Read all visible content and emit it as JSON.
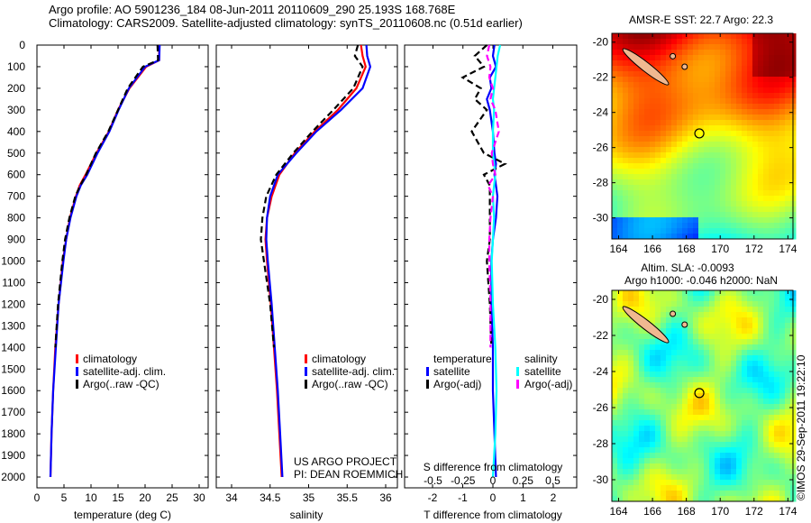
{
  "header": {
    "line1": "Argo profile: AO 5901236_184 08-Jun-2011 20110609_290 25.193S 168.768E",
    "line2": "Climatology: CARS2009. Satellite-adjusted climatology: synTS_20110608.nc (0.51d earlier)"
  },
  "colors": {
    "climatology": "#ff0000",
    "satellite": "#0000ff",
    "argo": "#000000",
    "sal_satellite": "#00ffff",
    "sal_argo": "#ff00ff"
  },
  "chart_data": [
    {
      "type": "line",
      "id": "temperature",
      "xlabel": "temperature (deg C)",
      "ylabel": "",
      "xlim": [
        -1.2,
        31.7
      ],
      "ylim": [
        2050,
        0
      ],
      "xticks": [
        0,
        5,
        10,
        15,
        20,
        25,
        30
      ],
      "yticks": [
        0,
        100,
        200,
        300,
        400,
        500,
        600,
        700,
        800,
        900,
        1000,
        1100,
        1200,
        1300,
        1400,
        1500,
        1600,
        1700,
        1800,
        1900,
        2000
      ],
      "legend": [
        "climatology",
        "satellite-adj. clim.",
        "Argo(..raw -QC)"
      ],
      "depth": [
        0,
        70,
        100,
        200,
        300,
        400,
        500,
        600,
        650,
        700,
        800,
        900,
        1000,
        1200,
        1400,
        1600,
        1800,
        2000
      ],
      "series": [
        {
          "name": "climatology",
          "values": [
            22.6,
            22.6,
            20.2,
            17.1,
            15.0,
            13.3,
            11.0,
            9.0,
            7.9,
            7.2,
            6.1,
            5.4,
            4.8,
            4.0,
            3.4,
            3.0,
            2.7,
            2.5
          ]
        },
        {
          "name": "satellite-adj. clim.",
          "values": [
            22.7,
            22.6,
            20.0,
            17.0,
            15.1,
            13.4,
            11.2,
            9.3,
            8.1,
            7.3,
            6.2,
            5.4,
            4.9,
            4.0,
            3.5,
            3.0,
            2.7,
            2.5
          ]
        },
        {
          "name": "Argo(..raw -QC)",
          "values": [
            22.3,
            22.4,
            19.6,
            16.8,
            15.0,
            13.2,
            10.9,
            9.1,
            8.0,
            7.1,
            6.0,
            5.2,
            4.7,
            3.9,
            3.4,
            null,
            null,
            null
          ]
        }
      ]
    },
    {
      "type": "line",
      "id": "salinity",
      "xlabel": "salinity",
      "xlim": [
        33.8,
        36.15
      ],
      "ylim": [
        2050,
        0
      ],
      "xticks": [
        34,
        34.5,
        35,
        35.5,
        36
      ],
      "legend": [
        "climatology",
        "satellite-adj. clim.",
        "Argo(..raw -QC)"
      ],
      "annotation": [
        "US ARGO PROJECT",
        "PI: DEAN ROEMMICH"
      ],
      "depth": [
        0,
        50,
        100,
        200,
        300,
        400,
        500,
        600,
        700,
        800,
        900,
        1000,
        1200,
        1400,
        1600,
        1800,
        2000
      ],
      "series": [
        {
          "name": "climatology",
          "values": [
            35.68,
            35.7,
            35.74,
            35.62,
            35.38,
            35.08,
            34.82,
            34.62,
            34.52,
            34.46,
            34.44,
            34.46,
            34.51,
            34.55,
            34.59,
            34.62,
            34.65
          ]
        },
        {
          "name": "satellite-adj. clim.",
          "values": [
            35.75,
            35.76,
            35.8,
            35.7,
            35.42,
            35.1,
            34.84,
            34.6,
            34.5,
            34.46,
            34.45,
            34.47,
            34.52,
            34.56,
            34.6,
            34.63,
            34.66
          ]
        },
        {
          "name": "Argo(..raw -QC)",
          "values": [
            35.64,
            35.6,
            35.7,
            35.58,
            35.32,
            35.05,
            34.8,
            34.58,
            34.45,
            34.4,
            34.38,
            34.42,
            34.5,
            34.55,
            null,
            null,
            null
          ]
        }
      ]
    },
    {
      "type": "line",
      "id": "difference",
      "xlabel": "T difference from climatology",
      "xlabel2": "S difference from climatology",
      "xlim": [
        -2.9,
        2.8
      ],
      "ylim": [
        2050,
        0
      ],
      "xticks": [
        -2,
        -1,
        0,
        1,
        2
      ],
      "xticks2": [
        -0.5,
        -0.25,
        0,
        0.25,
        0.5
      ],
      "legend_title_t": "temperature",
      "legend_title_s": "salinity",
      "legend": [
        "satellite",
        "Argo(-adj)",
        "satellite",
        "Argo(-adj)"
      ],
      "depth": [
        0,
        50,
        100,
        150,
        200,
        250,
        300,
        400,
        500,
        550,
        600,
        650,
        700,
        800,
        900,
        1000,
        1200,
        1400,
        1600,
        1800,
        2000
      ],
      "series": [
        {
          "name": "T satellite",
          "values": [
            0.05,
            0.0,
            0.1,
            -0.1,
            -0.05,
            -0.2,
            -0.1,
            0.0,
            0.05,
            0.1,
            0.05,
            0.1,
            0.15,
            0.1,
            0.0,
            -0.05,
            -0.05,
            0.0,
            0.0,
            0.05,
            0.1
          ]
        },
        {
          "name": "T Argo(-adj)",
          "values": [
            -0.2,
            -0.6,
            -0.3,
            -1.0,
            -0.4,
            -0.6,
            -0.2,
            -0.7,
            -0.3,
            0.4,
            -0.3,
            -0.1,
            -0.1,
            -0.1,
            -0.1,
            -0.2,
            -0.1,
            -0.05,
            null,
            null,
            null
          ]
        },
        {
          "name": "S satellite",
          "values": [
            0.06,
            0.04,
            0.03,
            0.02,
            0.01,
            0.0,
            0.01,
            0.0,
            0.0,
            0.01,
            0.02,
            0.01,
            0.0,
            0.01,
            0.0,
            -0.01,
            0.0,
            0.02,
            0.03,
            0.02,
            0.0
          ]
        },
        {
          "name": "S Argo(-adj)",
          "values": [
            -0.03,
            -0.05,
            -0.02,
            -0.03,
            0.0,
            -0.02,
            0.02,
            0.05,
            -0.01,
            0.0,
            0.02,
            -0.04,
            0.0,
            -0.02,
            -0.03,
            -0.03,
            -0.02,
            -0.02,
            null,
            null,
            null
          ]
        }
      ]
    },
    {
      "type": "heatmap",
      "id": "sst-map",
      "title": "AMSR-E SST: 22.7 Argo: 22.3",
      "xticks": [
        164,
        166,
        168,
        170,
        172,
        174
      ],
      "yticks": [
        -20,
        -22,
        -24,
        -26,
        -28,
        -30
      ],
      "xlim": [
        163.6,
        174.3
      ],
      "ylim": [
        -31.2,
        -19.5
      ],
      "marker": [
        168.768,
        -25.193
      ]
    },
    {
      "type": "heatmap",
      "id": "sla-map",
      "title": "Altim. SLA: -0.0093",
      "title2": "Argo h1000: -0.046 h2000: NaN",
      "xticks": [
        164,
        166,
        168,
        170,
        172,
        174
      ],
      "yticks": [
        -20,
        -22,
        -24,
        -26,
        -28,
        -30
      ],
      "xlim": [
        163.6,
        174.3
      ],
      "ylim": [
        -31.2,
        -19.5
      ],
      "marker": [
        168.768,
        -25.193
      ]
    }
  ],
  "footer": {
    "credit": "©IMOS 29-Sep-2011 19:22:10"
  }
}
